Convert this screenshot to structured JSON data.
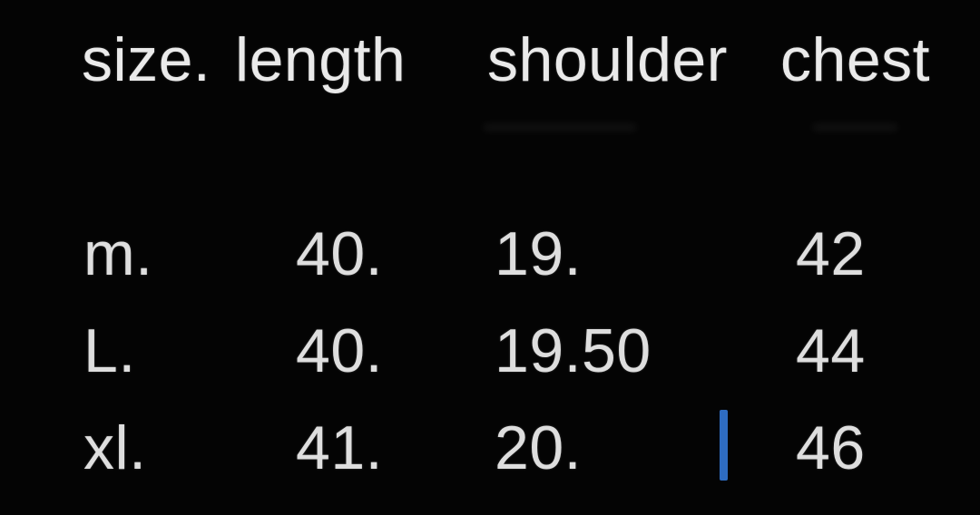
{
  "colors": {
    "background": "#040404",
    "header_text": "#eaeaea",
    "body_text": "#dedede",
    "caret": "#2e6cc2"
  },
  "table": {
    "headers": [
      {
        "id": "size",
        "label": "size."
      },
      {
        "id": "length",
        "label": "length"
      },
      {
        "id": "shoulder",
        "label": "shoulder"
      },
      {
        "id": "chest",
        "label": "chest"
      }
    ],
    "rows": [
      {
        "size": "m.",
        "length": "40.",
        "shoulder": "19.",
        "chest": "42"
      },
      {
        "size": "L.",
        "length": "40.",
        "shoulder": "19.50",
        "chest": "44"
      },
      {
        "size": "xl.",
        "length": "41.",
        "shoulder": "20.",
        "chest": "46"
      }
    ]
  },
  "cursor": {
    "visible": true,
    "row": "xl",
    "color": "#2e6cc2"
  }
}
